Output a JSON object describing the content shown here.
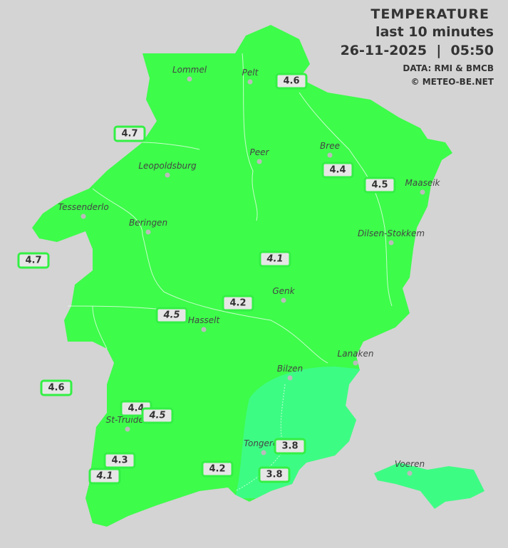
{
  "header": {
    "title": "TEMPERATURE",
    "subtitle": "last 10 minutes",
    "datetime": "26-11-2025  |  05:50",
    "source": "DATA: RMI & BMCB",
    "copyright": "© METEO-BE.NET"
  },
  "colors": {
    "background": "#d4d4d4",
    "temp_4_to_5": "#3dfc4a",
    "temp_3_to_4": "#3dfc84",
    "station_border": "#33f044"
  },
  "cities": [
    {
      "name": "Lommel"
    },
    {
      "name": "Pelt"
    },
    {
      "name": "Peer"
    },
    {
      "name": "Bree"
    },
    {
      "name": "Leopoldsburg"
    },
    {
      "name": "Maaseik"
    },
    {
      "name": "Tessenderlo"
    },
    {
      "name": "Beringen"
    },
    {
      "name": "Dilsen-Stokkem"
    },
    {
      "name": "Genk"
    },
    {
      "name": "Hasselt"
    },
    {
      "name": "Lanaken"
    },
    {
      "name": "Bilzen"
    },
    {
      "name": "St-Truiden"
    },
    {
      "name": "Tongeren"
    },
    {
      "name": "Voeren"
    }
  ],
  "stations": [
    {
      "value": "4.6"
    },
    {
      "value": "4.7"
    },
    {
      "value": "4.4"
    },
    {
      "value": "4.5"
    },
    {
      "value": "4.7"
    },
    {
      "value": "4.1"
    },
    {
      "value": "4.2"
    },
    {
      "value": "4.5"
    },
    {
      "value": "4.6"
    },
    {
      "value": "4.4"
    },
    {
      "value": "4.5"
    },
    {
      "value": "4.3"
    },
    {
      "value": "4.1"
    },
    {
      "value": "4.2"
    },
    {
      "value": "3.8"
    },
    {
      "value": "3.8"
    }
  ]
}
